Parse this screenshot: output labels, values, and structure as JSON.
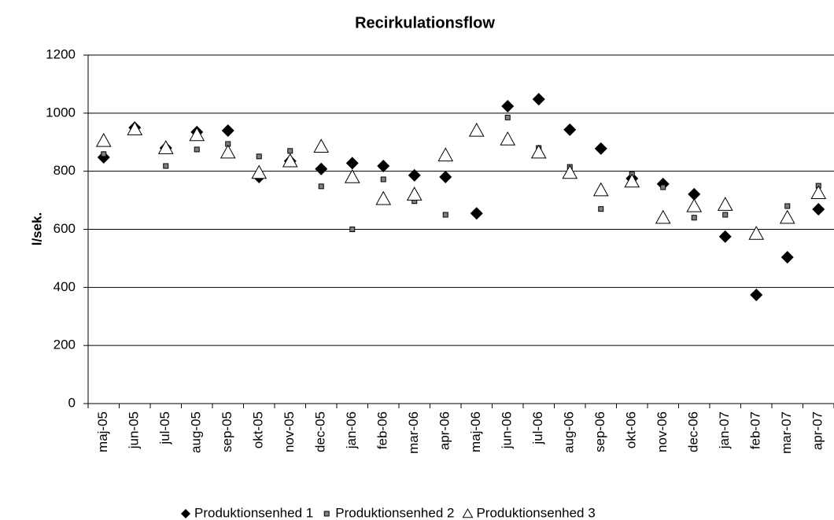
{
  "chart_data": {
    "type": "scatter",
    "title": "Recirkulationsflow",
    "y_label": "l/sek.",
    "categories": [
      "maj-05",
      "jun-05",
      "jul-05",
      "aug-05",
      "sep-05",
      "okt-05",
      "nov-05",
      "dec-05",
      "jan-06",
      "feb-06",
      "mar-06",
      "apr-06",
      "maj-06",
      "jun-06",
      "jul-06",
      "aug-06",
      "sep-06",
      "okt-06",
      "nov-06",
      "dec-06",
      "jan-07",
      "feb-07",
      "mar-07",
      "apr-07"
    ],
    "series": [
      {
        "name": "Produktionsenhed 1",
        "color": "#000000",
        "marker": "diamond",
        "values": [
          848,
          950,
          880,
          935,
          940,
          780,
          835,
          808,
          828,
          818,
          786,
          780,
          655,
          1024,
          1048,
          943,
          878,
          775,
          756,
          721,
          575,
          374,
          504,
          669
        ]
      },
      {
        "name": "Produktionsenhed 2",
        "color": "#808080",
        "marker": "square",
        "values": [
          859,
          951,
          818,
          875,
          894,
          851,
          870,
          748,
          600,
          772,
          697,
          650,
          null,
          985,
          880,
          815,
          670,
          790,
          745,
          640,
          650,
          null,
          680,
          750
        ]
      },
      {
        "name": "Produktionsenhed 3",
        "color": "#ffffff",
        "marker": "triangle",
        "values": [
          905,
          945,
          880,
          925,
          865,
          795,
          835,
          885,
          780,
          705,
          720,
          855,
          940,
          910,
          865,
          795,
          735,
          765,
          640,
          680,
          685,
          585,
          640,
          725
        ]
      }
    ],
    "ylim": [
      0,
      1200
    ],
    "yticks": [
      0,
      200,
      400,
      600,
      800,
      1000,
      1200
    ],
    "grid": true,
    "legend": "bottom"
  }
}
